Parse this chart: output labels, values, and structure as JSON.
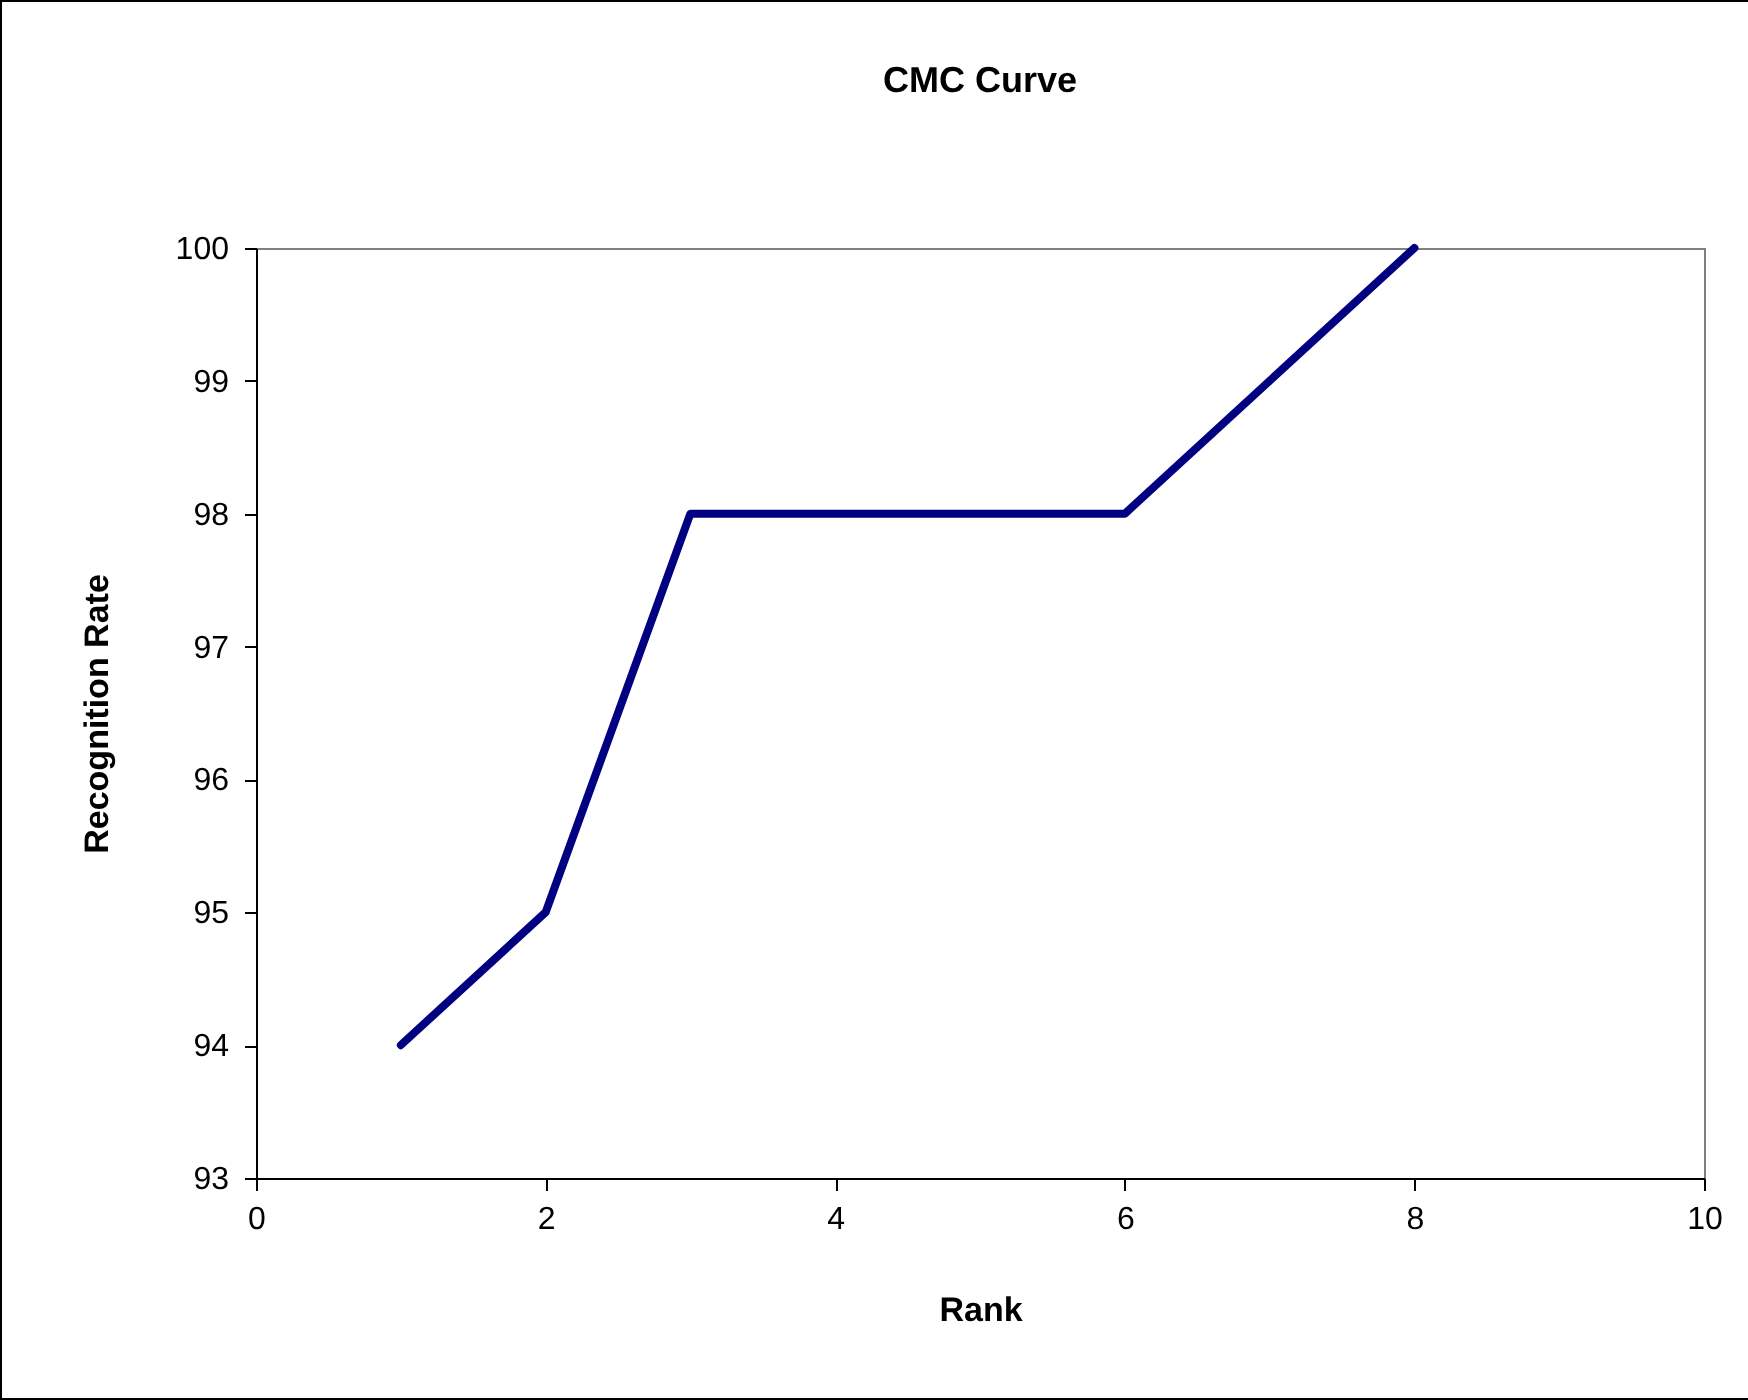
{
  "chart_data": {
    "type": "line",
    "title": "CMC Curve",
    "xlabel": "Rank",
    "ylabel": "Recognition Rate",
    "x": [
      1,
      2,
      3,
      4,
      5,
      6,
      7,
      8
    ],
    "series": [
      {
        "color": "#000080",
        "values": [
          94,
          95,
          98,
          98,
          98,
          98,
          99,
          100
        ]
      }
    ],
    "xlim": [
      0,
      10
    ],
    "xticks": [
      0,
      2,
      4,
      6,
      8,
      10
    ],
    "ylim": [
      93,
      100
    ],
    "yticks": [
      93,
      94,
      95,
      96,
      97,
      98,
      99,
      100
    ],
    "grid": false,
    "line_style": "solid"
  }
}
